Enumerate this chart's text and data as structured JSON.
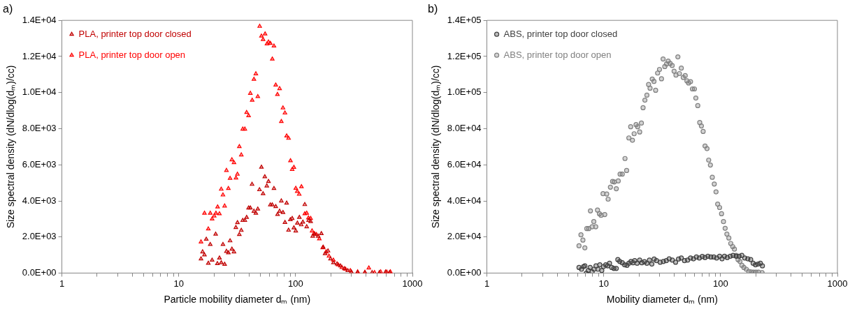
{
  "chart_data": [
    {
      "type": "scatter",
      "title": "a)",
      "xlabel": "Particle mobility diameter dₘ (nm)",
      "ylabel": "Size spectral density (dN/dlog(dₘ)/cc)",
      "log": "x",
      "grid": false,
      "legend": "top left",
      "marker": "triangle",
      "xlim": [
        1,
        1000
      ],
      "xticks": [
        1,
        {
          "value": 2,
          "label": null
        },
        {
          "value": 3,
          "label": null
        },
        {
          "value": 4,
          "label": null
        },
        {
          "value": 5,
          "label": null
        },
        {
          "value": 6,
          "label": null
        },
        {
          "value": 7,
          "label": null
        },
        {
          "value": 8,
          "label": null
        },
        {
          "value": 9,
          "label": null
        },
        10,
        {
          "value": 20,
          "label": null
        },
        {
          "value": 30,
          "label": null
        },
        {
          "value": 40,
          "label": null
        },
        {
          "value": 50,
          "label": null
        },
        {
          "value": 60,
          "label": null
        },
        {
          "value": 70,
          "label": null
        },
        {
          "value": 80,
          "label": null
        },
        {
          "value": 90,
          "label": null
        },
        100,
        {
          "value": 200,
          "label": null
        },
        {
          "value": 300,
          "label": null
        },
        {
          "value": 400,
          "label": null
        },
        {
          "value": 500,
          "label": null
        },
        {
          "value": 600,
          "label": null
        },
        {
          "value": 700,
          "label": null
        },
        {
          "value": 800,
          "label": null
        },
        {
          "value": 900,
          "label": null
        },
        1000
      ],
      "ylim": [
        0,
        14000
      ],
      "yticks": [
        {
          "value": 0,
          "label": "0.0E+00"
        },
        {
          "value": 2000,
          "label": "2.0E+03"
        },
        {
          "value": 4000,
          "label": "4.0E+03"
        },
        {
          "value": 6000,
          "label": "6.0E+03"
        },
        {
          "value": 8000,
          "label": "8.0E+03"
        },
        {
          "value": 10000,
          "label": "1.0E+04"
        },
        {
          "value": 12000,
          "label": "1.2E+04"
        },
        {
          "value": 14000,
          "label": "1.4E+04"
        }
      ],
      "series": [
        {
          "name": "PLA, printer top door closed",
          "color": "#c00000",
          "x": [
            15.5,
            16.0,
            16.6,
            17.2,
            17.9,
            18.6,
            19.3,
            20.7,
            21.4,
            22.3,
            23.1,
            23.9,
            24.7,
            25.6,
            26.6,
            27.5,
            28.5,
            29.7,
            30.8,
            31.8,
            33.0,
            34.3,
            35.3,
            36.8,
            38.1,
            39.6,
            41.0,
            42.4,
            44.0,
            45.7,
            47.5,
            49.1,
            51.0,
            52.7,
            54.5,
            56.7,
            58.6,
            60.8,
            63.2,
            65.3,
            67.6,
            70.1,
            73.0,
            75.5,
            78.0,
            81.1,
            83.8,
            87.1,
            90.2,
            93.5,
            96.7,
            100.4,
            103.6,
            107.7,
            111.7,
            115.4,
            119.9,
            124.5,
            129.3,
            134.5,
            140.1,
            146.1,
            156.1,
            166.1,
            172.3,
            178.9,
            189.4,
            199.1,
            210.8,
            226.4,
            242.1,
            261.5,
            279.8,
            299.9,
            339.8,
            392,
            452,
            522,
            589,
            638
          ],
          "values": [
            790,
            1180,
            1010,
            1880,
            550,
            1590,
            720,
            2160,
            530,
            840,
            580,
            1590,
            490,
            1210,
            1130,
            1790,
            1330,
            1180,
            2530,
            2800,
            2140,
            2370,
            2920,
            2920,
            3090,
            3610,
            3610,
            4920,
            3430,
            3320,
            3550,
            4620,
            5870,
            4400,
            5340,
            4830,
            5080,
            3780,
            3780,
            4690,
            3690,
            3250,
            3430,
            4000,
            3360,
            2810,
            3880,
            2380,
            2960,
            3030,
            2510,
            2340,
            2770,
            3090,
            2680,
            2830,
            3800,
            2570,
            2920,
            2860,
            2050,
            2160,
            2050,
            2190,
            1440,
            1080,
            1230,
            790,
            580,
            510,
            400,
            250,
            140,
            70,
            30,
            30,
            30,
            30,
            60,
            30
          ]
        },
        {
          "name": "PLA, printer top door open",
          "color": "#ff0000",
          "x": [
            15.5,
            16.6,
            17.9,
            18.6,
            19.3,
            20.1,
            20.8,
            21.5,
            22.3,
            23.1,
            23.9,
            24.7,
            25.6,
            26.6,
            27.5,
            28.5,
            29.7,
            30.9,
            31.8,
            33.0,
            34.3,
            35.3,
            36.8,
            38.1,
            39.6,
            41.0,
            42.5,
            44.0,
            45.7,
            47.5,
            49.3,
            51.0,
            52.7,
            54.8,
            56.9,
            58.6,
            60.8,
            63.2,
            65.3,
            67.6,
            69.9,
            73.0,
            75.5,
            78.0,
            81.1,
            83.8,
            87.1,
            90.4,
            93.5,
            96.7,
            100.4,
            103.3,
            107.4,
            112.2,
            119.9,
            124.5,
            128.8,
            134.5,
            138.4,
            143.8,
            150.8,
            159.7,
            170.7,
            182.4,
            193.2,
            210.8,
            231.9,
            249.0,
            267.5,
            294.2,
            339.8,
            392,
            423.5,
            474,
            535,
            603,
            648
          ],
          "values": [
            1730,
            3320,
            2450,
            3320,
            3000,
            3170,
            3320,
            3670,
            3290,
            4650,
            4330,
            3720,
            5690,
            4690,
            5250,
            6280,
            6120,
            5270,
            5480,
            7010,
            6550,
            7980,
            7980,
            8900,
            8720,
            9960,
            9580,
            10740,
            11040,
            9780,
            13670,
            13130,
            12940,
            13250,
            12700,
            12800,
            12730,
            11860,
            12580,
            10420,
            9900,
            10220,
            8400,
            9150,
            8870,
            7600,
            7470,
            6230,
            5740,
            5860,
            4700,
            4530,
            4370,
            4790,
            3290,
            3320,
            3060,
            3030,
            2340,
            2190,
            2140,
            1900,
            1410,
            1180,
            940,
            720,
            460,
            320,
            220,
            140,
            70,
            40,
            290,
            30,
            70,
            60,
            70
          ]
        }
      ]
    },
    {
      "type": "scatter",
      "title": "b)",
      "xlabel": "Mobility diameter dₘ (nm)",
      "ylabel": "Size spectral density (dN/dlog(dₘ)/cc)",
      "log": "x",
      "grid": false,
      "legend": "top left",
      "marker": "circle",
      "xlim": [
        1,
        1000
      ],
      "xticks": [
        1,
        {
          "value": 2,
          "label": null
        },
        {
          "value": 3,
          "label": null
        },
        {
          "value": 4,
          "label": null
        },
        {
          "value": 5,
          "label": null
        },
        {
          "value": 6,
          "label": null
        },
        {
          "value": 7,
          "label": null
        },
        {
          "value": 8,
          "label": null
        },
        {
          "value": 9,
          "label": null
        },
        10,
        {
          "value": 20,
          "label": null
        },
        {
          "value": 30,
          "label": null
        },
        {
          "value": 40,
          "label": null
        },
        {
          "value": 50,
          "label": null
        },
        {
          "value": 60,
          "label": null
        },
        {
          "value": 70,
          "label": null
        },
        {
          "value": 80,
          "label": null
        },
        {
          "value": 90,
          "label": null
        },
        100,
        {
          "value": 200,
          "label": null
        },
        {
          "value": 300,
          "label": null
        },
        {
          "value": 400,
          "label": null
        },
        {
          "value": 500,
          "label": null
        },
        {
          "value": 600,
          "label": null
        },
        {
          "value": 700,
          "label": null
        },
        {
          "value": 800,
          "label": null
        },
        {
          "value": 900,
          "label": null
        },
        1000
      ],
      "ylim": [
        0,
        140000
      ],
      "yticks": [
        {
          "value": 0,
          "label": "0.0E+00"
        },
        {
          "value": 20000,
          "label": "2.0E+04"
        },
        {
          "value": 40000,
          "label": "4.0E+04"
        },
        {
          "value": 60000,
          "label": "6.0E+04"
        },
        {
          "value": 80000,
          "label": "8.0E+04"
        },
        {
          "value": 100000,
          "label": "1.0E+05"
        },
        {
          "value": 120000,
          "label": "1.2E+05"
        },
        {
          "value": 140000,
          "label": "1.4E+05"
        }
      ],
      "series": [
        {
          "name": "ABS, printer top door closed",
          "color": "#404040",
          "x": [
            6.14,
            6.45,
            6.7,
            6.89,
            7.09,
            7.36,
            7.65,
            7.95,
            8.26,
            8.58,
            8.91,
            9.26,
            9.62,
            9.94,
            10.4,
            10.8,
            11.2,
            11.7,
            12.2,
            12.8,
            13.2,
            13.7,
            14.4,
            15.1,
            15.8,
            16.4,
            17.1,
            17.8,
            18.4,
            19.3,
            20.3,
            21.2,
            22.3,
            23.4,
            24.6,
            25.8,
            27.0,
            28.3,
            30.4,
            32.4,
            34.3,
            36.3,
            38.6,
            41.2,
            43.6,
            46.1,
            49.1,
            52.2,
            55.3,
            58.6,
            62.1,
            65.8,
            69.7,
            73.6,
            77.9,
            82.5,
            87.5,
            92.5,
            98.1,
            102.9,
            108,
            114,
            121,
            128,
            136,
            144,
            152,
            161,
            171,
            181,
            190,
            199,
            209,
            219,
            228
          ],
          "values": [
            3170,
            2160,
            3610,
            4040,
            0,
            1440,
            3170,
            720,
            2160,
            4040,
            2160,
            4620,
            1440,
            3610,
            4620,
            4040,
            5480,
            3170,
            2600,
            2600,
            7500,
            6490,
            5770,
            4620,
            4330,
            5480,
            6490,
            5770,
            6930,
            5480,
            7220,
            5770,
            6350,
            5480,
            7220,
            5050,
            7790,
            6930,
            6060,
            6490,
            6930,
            7940,
            7220,
            6060,
            7790,
            8370,
            6930,
            7220,
            8370,
            7940,
            8950,
            8370,
            9240,
            8660,
            9380,
            8950,
            8950,
            8370,
            9380,
            7940,
            9380,
            8660,
            9380,
            9810,
            9380,
            9380,
            9810,
            8370,
            7940,
            7500,
            5480,
            4620,
            5050,
            5480,
            4040
          ]
        },
        {
          "name": "ABS, printer top door open",
          "color": "#808080",
          "x": [
            6.14,
            6.38,
            6.63,
            6.89,
            7.16,
            7.44,
            7.69,
            7.95,
            8.22,
            8.54,
            8.84,
            9.18,
            9.49,
            9.86,
            10.2,
            10.6,
            10.9,
            11.4,
            11.9,
            12.3,
            12.8,
            13.3,
            13.8,
            14.4,
            15.2,
            15.7,
            16.4,
            17.0,
            17.6,
            18.2,
            18.9,
            19.5,
            20.3,
            21.0,
            21.7,
            22.5,
            23.4,
            24.2,
            24.9,
            26.0,
            26.9,
            27.8,
            28.9,
            30.0,
            31.2,
            32.2,
            33.3,
            34.5,
            35.6,
            37.0,
            38.5,
            40.0,
            41.5,
            43.1,
            44.4,
            46.1,
            47.9,
            49.8,
            51.5,
            53.2,
            55.3,
            57.4,
            59.7,
            61.4,
            63.8,
            66.3,
            68.5,
            70.9,
            73.6,
            76.5,
            79.1,
            81.8,
            84.9,
            88.3,
            91.4,
            94.4,
            98.1,
            101.9,
            105.9,
            109.4,
            113.2,
            117.7,
            122.2,
            127.0,
            131.3,
            135.8,
            141.0,
            146.5,
            152.3,
            158.2,
            165.9,
            174.2,
            182.4,
            191.4,
            200.9,
            210.8,
            226.4
          ],
          "values": [
            15150,
            21210,
            18330,
            14000,
            24680,
            24680,
            34490,
            25690,
            28570,
            25690,
            34920,
            32900,
            32030,
            44010,
            32470,
            43870,
            40980,
            47620,
            50790,
            50510,
            46750,
            51080,
            54830,
            54830,
            63490,
            56850,
            74890,
            81100,
            73590,
            77200,
            82250,
            81100,
            78210,
            83120,
            91630,
            95820,
            98560,
            104470,
            102450,
            107500,
            106200,
            101300,
            110820,
            112840,
            107650,
            118610,
            114430,
            115870,
            117460,
            116160,
            115010,
            111830,
            109670,
            119770,
            110530,
            113560,
            108370,
            109380,
            106490,
            105340,
            106060,
            102020,
            102020,
            96970,
            92790,
            83410,
            81530,
            78500,
            70420,
            68980,
            62630,
            59890,
            53100,
            49350,
            45020,
            38240,
            36360,
            32900,
            28570,
            24820,
            21650,
            19480,
            16450,
            14720,
            13280,
            9810,
            7500,
            6490,
            4330,
            3170,
            2160,
            1010,
            720,
            580,
            580,
            580,
            290
          ]
        }
      ]
    }
  ]
}
